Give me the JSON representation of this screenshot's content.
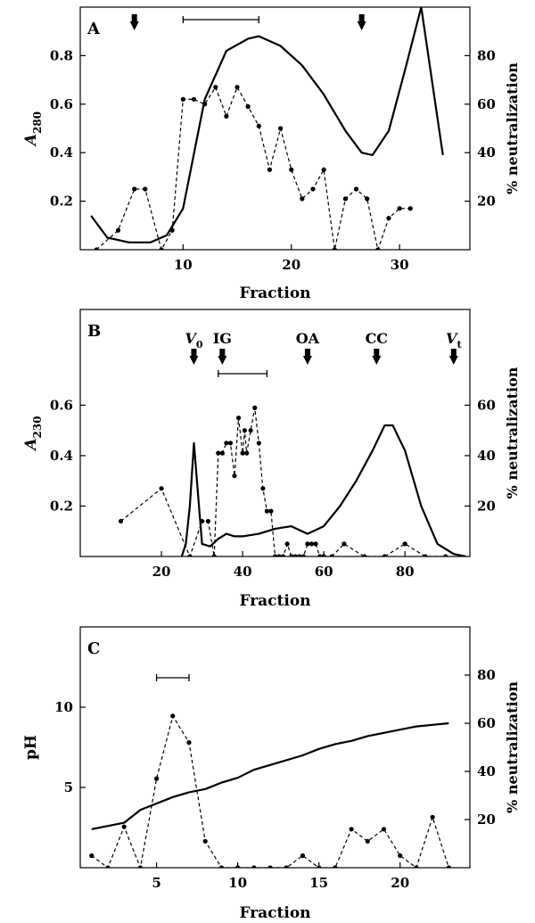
{
  "chart_data": [
    {
      "panel": "A",
      "type": "line",
      "xlabel": "Fraction",
      "ylabel_main": "A",
      "ylabel_sub": "280",
      "ylabel_right": "% neutralization",
      "xlim": [
        0.5,
        36.5
      ],
      "ylim": [
        0,
        1.0
      ],
      "ylim_right": [
        0,
        100
      ],
      "xticks": [
        10,
        20,
        30
      ],
      "yticks": [
        0.2,
        0.4,
        0.6,
        0.8
      ],
      "yticks_right": [
        20,
        40,
        60,
        80
      ],
      "bar": [
        10,
        17
      ],
      "arrows": [
        5.5,
        26.5
      ],
      "series": [
        {
          "style": "solid",
          "axis": "left",
          "x": [
            1.5,
            3,
            5,
            7,
            8.5,
            10,
            12,
            14,
            16,
            17,
            19,
            21,
            23,
            25,
            26.5,
            27.5,
            29,
            30.5,
            32,
            34
          ],
          "y": [
            0.14,
            0.05,
            0.03,
            0.03,
            0.06,
            0.17,
            0.62,
            0.82,
            0.87,
            0.88,
            0.84,
            0.76,
            0.64,
            0.49,
            0.4,
            0.39,
            0.49,
            0.74,
            1.0,
            0.39
          ]
        },
        {
          "style": "dashed",
          "axis": "right",
          "x": [
            2,
            4,
            5.5,
            6.5,
            8,
            9,
            10,
            11,
            12,
            13,
            14,
            15,
            16,
            17,
            18,
            19,
            20,
            21,
            22,
            23,
            24,
            25,
            26,
            27,
            28,
            29,
            30,
            31
          ],
          "y": [
            0,
            8,
            25,
            25,
            0,
            8,
            62,
            62,
            60,
            67,
            55,
            67,
            59,
            51,
            33,
            50,
            33,
            21,
            25,
            33,
            0,
            21,
            25,
            21,
            0,
            13,
            17,
            17
          ]
        }
      ]
    },
    {
      "panel": "B",
      "type": "line",
      "xlabel": "Fraction",
      "ylabel_main": "A",
      "ylabel_sub": "230",
      "ylabel_right": "% neutralization",
      "xlim": [
        0,
        96
      ],
      "ylim": [
        0,
        0.98
      ],
      "ylim_right": [
        0,
        98
      ],
      "xticks": [
        20,
        40,
        60,
        80
      ],
      "yticks": [
        0.2,
        0.4,
        0.6
      ],
      "yticks_right": [
        20,
        40,
        60
      ],
      "bar": [
        34,
        46
      ],
      "markers": [
        {
          "label": "V",
          "sub": "0",
          "x": 28
        },
        {
          "label": "IG",
          "sub": "",
          "x": 35
        },
        {
          "label": "OA",
          "sub": "",
          "x": 56
        },
        {
          "label": "CC",
          "sub": "",
          "x": 73
        },
        {
          "label": "V",
          "sub": "t",
          "x": 92
        }
      ],
      "series": [
        {
          "style": "solid",
          "axis": "left",
          "x": [
            25,
            26,
            27,
            28,
            29,
            30,
            32,
            34,
            36,
            38,
            40,
            44,
            48,
            52,
            56,
            60,
            64,
            68,
            72,
            75,
            77,
            80,
            84,
            88,
            92,
            95
          ],
          "y": [
            0,
            0.05,
            0.2,
            0.45,
            0.25,
            0.05,
            0.04,
            0.07,
            0.09,
            0.08,
            0.08,
            0.09,
            0.11,
            0.12,
            0.09,
            0.12,
            0.2,
            0.3,
            0.42,
            0.52,
            0.52,
            0.42,
            0.2,
            0.05,
            0.01,
            0
          ]
        },
        {
          "style": "dashed",
          "axis": "right",
          "x": [
            10,
            20,
            27,
            30,
            31.5,
            33,
            34,
            35,
            36,
            37,
            38,
            39,
            40,
            40.5,
            41,
            42,
            43,
            44,
            45,
            46,
            47,
            48,
            49,
            50,
            51,
            52,
            53,
            54,
            55,
            56,
            57,
            58,
            59,
            60,
            62,
            65,
            70,
            75,
            80,
            85,
            90
          ],
          "y": [
            14,
            27,
            0,
            14,
            14,
            0,
            41,
            41,
            45,
            45,
            32,
            55,
            41,
            50,
            41,
            50,
            59,
            45,
            27,
            18,
            18,
            0,
            0,
            0,
            5,
            0,
            0,
            0,
            0,
            5,
            5,
            5,
            0,
            0,
            0,
            5,
            0,
            0,
            5,
            0,
            0
          ]
        }
      ]
    },
    {
      "panel": "C",
      "type": "line",
      "xlabel": "Fraction",
      "ylabel_main": "pH",
      "ylabel_right": "% neutralization",
      "xlim": [
        0.3,
        24.3
      ],
      "ylim": [
        0,
        15
      ],
      "ylim_right": [
        0,
        100
      ],
      "xticks": [
        5,
        10,
        15,
        20
      ],
      "yticks": [
        5,
        10
      ],
      "yticks_right": [
        20,
        40,
        60,
        80
      ],
      "bar": [
        5,
        7
      ],
      "series": [
        {
          "style": "solid",
          "axis": "left",
          "x": [
            1,
            2,
            3,
            4,
            5,
            6,
            7,
            8,
            9,
            10,
            11,
            12,
            13,
            14,
            15,
            16,
            17,
            18,
            19,
            20,
            21,
            22,
            23
          ],
          "y": [
            2.4,
            2.6,
            2.8,
            3.6,
            4.0,
            4.4,
            4.7,
            4.9,
            5.3,
            5.6,
            6.1,
            6.4,
            6.7,
            7.0,
            7.4,
            7.7,
            7.9,
            8.2,
            8.4,
            8.6,
            8.8,
            8.9,
            9.0
          ]
        },
        {
          "style": "dashed",
          "axis": "right",
          "x": [
            1,
            2,
            3,
            4,
            5,
            6,
            7,
            8,
            9,
            10,
            11,
            12,
            13,
            14,
            15,
            16,
            17,
            18,
            19,
            20,
            21,
            22,
            23
          ],
          "y": [
            5,
            0,
            17,
            0,
            37,
            63,
            52,
            11,
            0,
            0,
            0,
            0,
            0,
            5,
            0,
            0,
            16,
            11,
            16,
            5,
            0,
            21,
            0
          ]
        }
      ]
    }
  ]
}
